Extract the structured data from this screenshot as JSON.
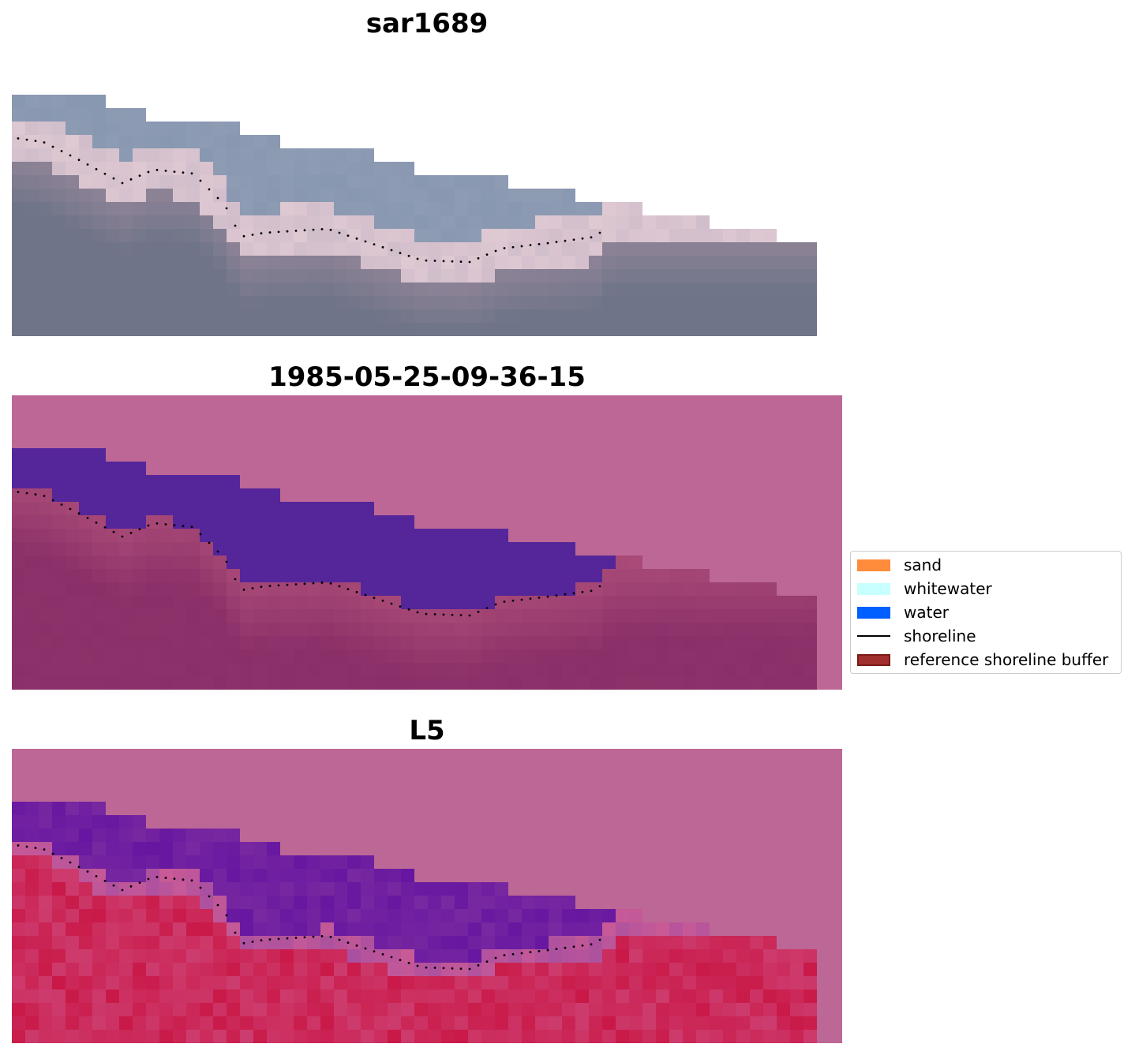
{
  "panels": [
    {
      "id": "rgb",
      "title": "sar1689"
    },
    {
      "id": "classification",
      "title": "1985-05-25-09-36-15"
    },
    {
      "id": "index",
      "title": "L5"
    }
  ],
  "legend": {
    "items": [
      {
        "label": "sand",
        "kind": "patch",
        "color": "#ff8c3a",
        "border": "#ff8c3a"
      },
      {
        "label": "whitewater",
        "kind": "patch",
        "color": "#c8ffff",
        "border": "#c8ffff"
      },
      {
        "label": "water",
        "kind": "patch",
        "color": "#0060ff",
        "border": "#0060ff"
      },
      {
        "label": "shoreline",
        "kind": "line",
        "color": "#000000"
      },
      {
        "label": "reference shoreline buffer",
        "kind": "patch",
        "color": "#a0302e",
        "border": "#7a1a18"
      }
    ]
  },
  "colors": {
    "buffer_overlay": "#bd6796",
    "water_class": "#55259a",
    "land_tint": "#8a2f68",
    "rgb_sky": "#8898b0",
    "rgb_ground": "#6f7488",
    "index_high": "#c8103e",
    "index_low": "#5a0aa0",
    "shoreline": "#000000"
  }
}
